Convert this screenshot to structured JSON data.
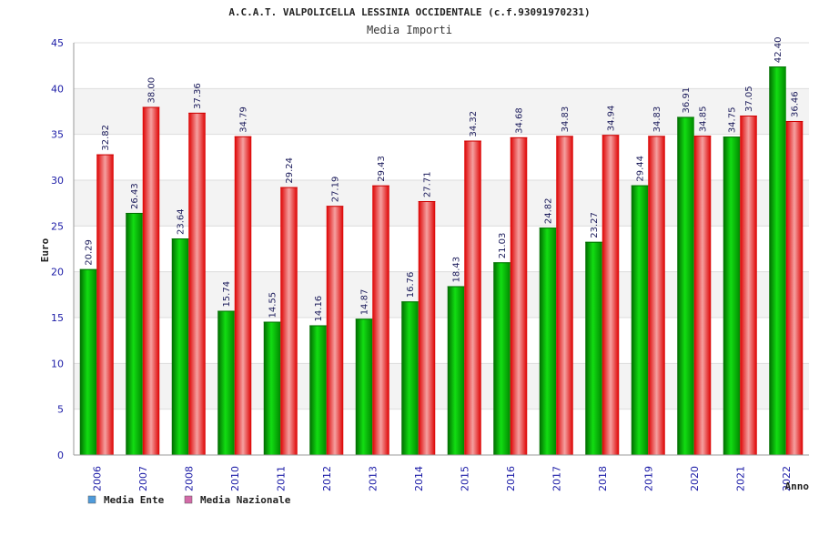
{
  "chart_data": {
    "type": "bar",
    "title": "A.C.A.T. VALPOLICELLA LESSINIA OCCIDENTALE (c.f.93091970231)",
    "subtitle": "Media Importi",
    "xlabel": "Anno",
    "ylabel": "Euro",
    "ylim": [
      0,
      45
    ],
    "yticks": [
      "0",
      "5",
      "10",
      "15",
      "20",
      "25",
      "30",
      "35",
      "40",
      "45"
    ],
    "grid": true,
    "legend_position": "bottom-left",
    "categories": [
      "2006",
      "2007",
      "2008",
      "2010",
      "2011",
      "2012",
      "2013",
      "2014",
      "2015",
      "2016",
      "2017",
      "2018",
      "2019",
      "2020",
      "2021",
      "2022"
    ],
    "series": [
      {
        "name": "Media Ente",
        "color": "#00bb00",
        "legend_color": "#4f9bdb",
        "values": [
          20.29,
          26.43,
          23.64,
          15.74,
          14.55,
          14.16,
          14.87,
          16.76,
          18.43,
          21.03,
          24.82,
          23.27,
          29.44,
          36.91,
          34.75,
          42.4
        ],
        "labels": [
          "20.29",
          "26.43",
          "23.64",
          "15.74",
          "14.55",
          "14.16",
          "14.87",
          "16.76",
          "18.43",
          "21.03",
          "24.82",
          "23.27",
          "29.44",
          "36.91",
          "34.75",
          "42.40"
        ]
      },
      {
        "name": "Media Nazionale",
        "color": "#ee1111",
        "legend_color": "#d36aa8",
        "values": [
          32.82,
          38.0,
          37.36,
          34.79,
          29.24,
          27.19,
          29.43,
          27.71,
          34.32,
          34.68,
          34.83,
          34.94,
          34.83,
          34.85,
          37.05,
          36.46
        ],
        "labels": [
          "32.82",
          "38.00",
          "37.36",
          "34.79",
          "29.24",
          "27.19",
          "29.43",
          "27.71",
          "34.32",
          "34.68",
          "34.83",
          "34.94",
          "34.83",
          "34.85",
          "37.05",
          "36.46"
        ]
      }
    ]
  }
}
